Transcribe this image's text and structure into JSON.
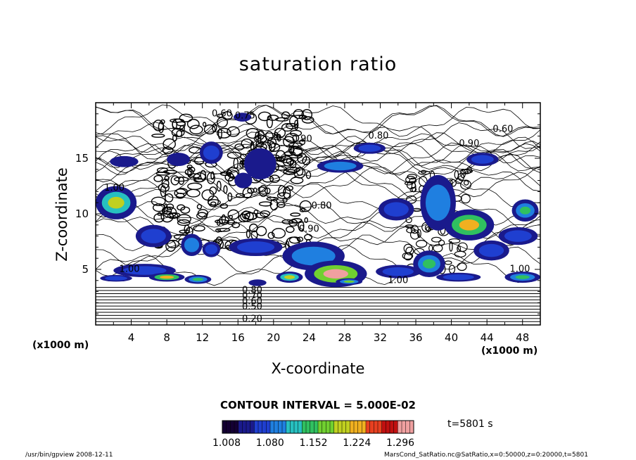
{
  "chart_data": {
    "type": "heatmap",
    "title": "saturation ratio",
    "xlabel": "X-coordinate",
    "ylabel": "Z-coordinate",
    "x_unit_left": "(x1000 m)",
    "x_unit_right": "(x1000 m)",
    "xlim": [
      0,
      50
    ],
    "ylim": [
      0,
      20
    ],
    "x_ticks": [
      4,
      8,
      12,
      16,
      20,
      24,
      28,
      32,
      36,
      40,
      44,
      48
    ],
    "y_ticks": [
      5,
      10,
      15
    ],
    "contour_interval": "CONTOUR INTERVAL = 5.000E-02",
    "colorbar": {
      "range": [
        1.008,
        1.296
      ],
      "tick_labels": [
        "1.008",
        "1.080",
        "1.152",
        "1.224",
        "1.296"
      ],
      "colors": [
        "#140033",
        "#1a1a8c",
        "#1f3fd0",
        "#1f7fe0",
        "#27c0c0",
        "#30c060",
        "#70d030",
        "#c0d020",
        "#f0b020",
        "#e84020",
        "#c01010",
        "#f0a0a0"
      ]
    },
    "contour_labels": [
      {
        "x": 14.2,
        "y": 19.0,
        "text": "0.60"
      },
      {
        "x": 16.8,
        "y": 18.8,
        "text": "0.75"
      },
      {
        "x": 45.8,
        "y": 17.6,
        "text": "0.60"
      },
      {
        "x": 23.2,
        "y": 16.7,
        "text": "0.90"
      },
      {
        "x": 31.8,
        "y": 17.0,
        "text": "0.80"
      },
      {
        "x": 42.0,
        "y": 16.3,
        "text": "0.90"
      },
      {
        "x": 2.1,
        "y": 12.3,
        "text": "1.00"
      },
      {
        "x": 25.4,
        "y": 10.7,
        "text": "0.80"
      },
      {
        "x": 24.0,
        "y": 8.6,
        "text": "0.90"
      },
      {
        "x": 3.8,
        "y": 5.0,
        "text": "1.00"
      },
      {
        "x": 34.0,
        "y": 4.0,
        "text": "1.00"
      },
      {
        "x": 47.7,
        "y": 5.0,
        "text": "1.00"
      },
      {
        "x": 17.6,
        "y": 3.1,
        "text": "0.80"
      },
      {
        "x": 17.6,
        "y": 2.6,
        "text": "0.70"
      },
      {
        "x": 17.6,
        "y": 2.1,
        "text": "0.60"
      },
      {
        "x": 17.6,
        "y": 1.6,
        "text": "0.50"
      },
      {
        "x": 17.6,
        "y": 0.5,
        "text": "0.20"
      }
    ],
    "supersaturated_regions": [
      {
        "x": 2.3,
        "y": 11.0,
        "rx": 2.3,
        "ry": 1.5,
        "v": 1.2
      },
      {
        "x": 3.2,
        "y": 14.7,
        "rx": 1.6,
        "ry": 0.5,
        "v": 1.05
      },
      {
        "x": 9.3,
        "y": 14.9,
        "rx": 1.3,
        "ry": 0.6,
        "v": 1.07
      },
      {
        "x": 13.0,
        "y": 15.5,
        "rx": 1.3,
        "ry": 1.0,
        "v": 1.1
      },
      {
        "x": 18.5,
        "y": 14.5,
        "rx": 1.8,
        "ry": 1.4,
        "v": 1.04
      },
      {
        "x": 16.6,
        "y": 13.0,
        "rx": 1.0,
        "ry": 0.7,
        "v": 1.06
      },
      {
        "x": 16.5,
        "y": 18.7,
        "rx": 1.0,
        "ry": 0.4,
        "v": 1.02
      },
      {
        "x": 27.5,
        "y": 14.3,
        "rx": 2.6,
        "ry": 0.6,
        "v": 1.12
      },
      {
        "x": 30.8,
        "y": 15.9,
        "rx": 1.8,
        "ry": 0.5,
        "v": 1.1
      },
      {
        "x": 43.5,
        "y": 14.9,
        "rx": 1.8,
        "ry": 0.6,
        "v": 1.08
      },
      {
        "x": 33.8,
        "y": 10.4,
        "rx": 2.0,
        "ry": 1.0,
        "v": 1.1
      },
      {
        "x": 38.5,
        "y": 11.0,
        "rx": 2.0,
        "ry": 2.5,
        "v": 1.12
      },
      {
        "x": 42.0,
        "y": 9.0,
        "rx": 2.8,
        "ry": 1.4,
        "v": 1.22
      },
      {
        "x": 47.5,
        "y": 8.0,
        "rx": 2.2,
        "ry": 0.8,
        "v": 1.1
      },
      {
        "x": 48.3,
        "y": 10.3,
        "rx": 1.5,
        "ry": 1.0,
        "v": 1.14
      },
      {
        "x": 44.5,
        "y": 6.7,
        "rx": 2.0,
        "ry": 0.9,
        "v": 1.08
      },
      {
        "x": 6.5,
        "y": 8.0,
        "rx": 2.0,
        "ry": 1.0,
        "v": 1.08
      },
      {
        "x": 10.8,
        "y": 7.2,
        "rx": 1.2,
        "ry": 1.0,
        "v": 1.12
      },
      {
        "x": 13.0,
        "y": 6.8,
        "rx": 1.0,
        "ry": 0.7,
        "v": 1.1
      },
      {
        "x": 18.0,
        "y": 7.0,
        "rx": 3.0,
        "ry": 0.8,
        "v": 1.08
      },
      {
        "x": 24.5,
        "y": 6.2,
        "rx": 3.5,
        "ry": 1.3,
        "v": 1.12
      },
      {
        "x": 27.0,
        "y": 4.6,
        "rx": 3.5,
        "ry": 1.2,
        "v": 1.28
      },
      {
        "x": 37.5,
        "y": 5.5,
        "rx": 1.8,
        "ry": 1.2,
        "v": 1.14
      },
      {
        "x": 34.0,
        "y": 4.8,
        "rx": 2.5,
        "ry": 0.6,
        "v": 1.1
      },
      {
        "x": 5.5,
        "y": 4.9,
        "rx": 3.5,
        "ry": 0.6,
        "v": 1.1
      },
      {
        "x": 8.0,
        "y": 4.3,
        "rx": 2.0,
        "ry": 0.4,
        "v": 1.22
      },
      {
        "x": 11.5,
        "y": 4.1,
        "rx": 1.5,
        "ry": 0.4,
        "v": 1.14
      },
      {
        "x": 2.3,
        "y": 4.2,
        "rx": 1.8,
        "ry": 0.3,
        "v": 1.08
      },
      {
        "x": 21.8,
        "y": 4.3,
        "rx": 1.5,
        "ry": 0.5,
        "v": 1.18
      },
      {
        "x": 18.2,
        "y": 3.8,
        "rx": 1.0,
        "ry": 0.3,
        "v": 1.06
      },
      {
        "x": 40.8,
        "y": 4.3,
        "rx": 2.5,
        "ry": 0.4,
        "v": 1.1
      },
      {
        "x": 48.0,
        "y": 4.3,
        "rx": 2.0,
        "ry": 0.5,
        "v": 1.14
      },
      {
        "x": 28.5,
        "y": 3.9,
        "rx": 1.5,
        "ry": 0.3,
        "v": 1.16
      }
    ]
  },
  "time_label": "t=5801 s",
  "footer_left": "/usr/bin/gpview   2008-12-11",
  "footer_right": "MarsCond_SatRatio.nc@SatRatio,x=0:50000,z=0:20000,t=5801"
}
